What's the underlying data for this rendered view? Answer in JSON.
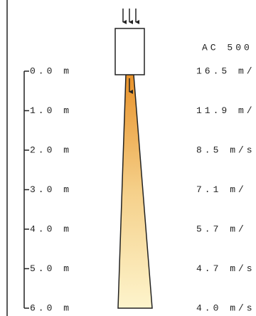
{
  "model": "AC 500",
  "scale": {
    "labels": [
      "0.0 m",
      "1.0 m",
      "2.0 m",
      "3.0 m",
      "4.0 m",
      "5.0 m",
      "6.0 m"
    ]
  },
  "speeds": [
    "16.5 m/",
    "11.9 m/",
    "8.5 m/s",
    "7.1  m/",
    "5.7  m/",
    "4.7 m/s",
    "4.0 m/s"
  ]
}
